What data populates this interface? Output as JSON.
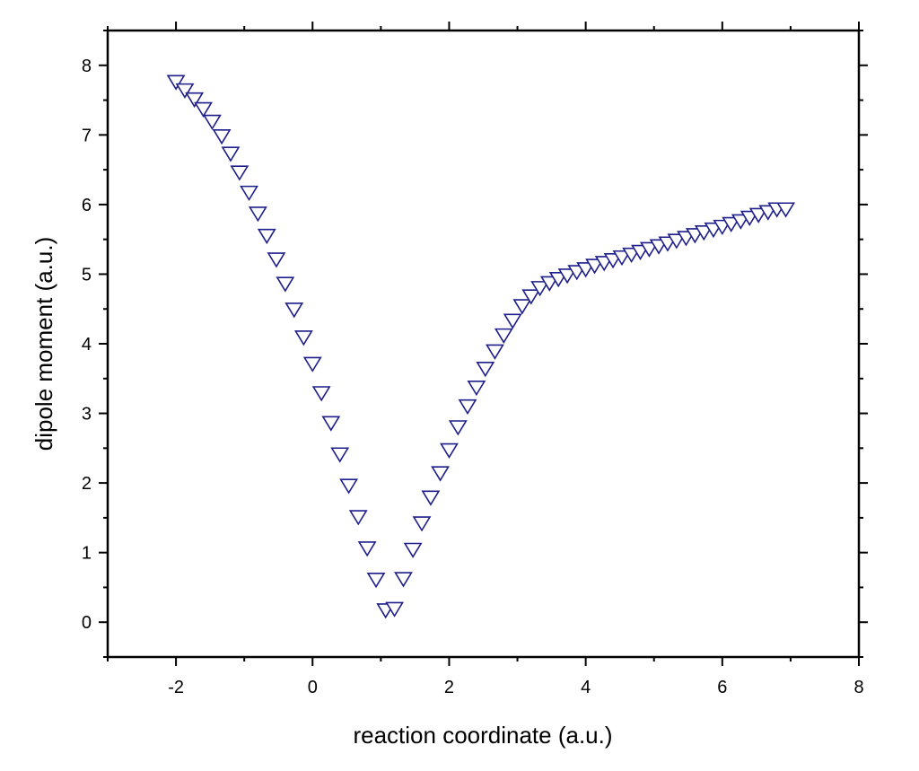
{
  "chart_data": {
    "type": "scatter",
    "title": "",
    "xlabel": "reaction coordinate (a.u.)",
    "ylabel": "dipole moment (a.u.)",
    "xlim": [
      -3,
      8
    ],
    "ylim": [
      -0.5,
      8.5
    ],
    "x_ticks": [
      -2,
      0,
      2,
      4,
      6,
      8
    ],
    "x_tick_labels": [
      "-2",
      "0",
      "2",
      "4",
      "6",
      "8"
    ],
    "y_ticks": [
      0,
      1,
      2,
      3,
      4,
      5,
      6,
      7,
      8
    ],
    "y_tick_labels": [
      "0",
      "1",
      "2",
      "3",
      "4",
      "5",
      "6",
      "7",
      "8"
    ],
    "grid": false,
    "marker": "down-triangle",
    "marker_color": "#1f1f8c",
    "series": [
      {
        "x": [
          -2.0,
          -1.87,
          -1.73,
          -1.6,
          -1.47,
          -1.33,
          -1.2,
          -1.07,
          -0.93,
          -0.8,
          -0.67,
          -0.53,
          -0.4,
          -0.27,
          -0.13,
          0.0,
          0.13,
          0.27,
          0.4,
          0.53,
          0.67,
          0.8,
          0.93,
          1.07,
          1.2,
          1.33,
          1.47,
          1.6,
          1.73,
          1.87,
          2.0,
          2.13,
          2.27,
          2.4,
          2.53,
          2.67,
          2.8,
          2.93,
          3.07,
          3.2,
          3.33,
          3.47,
          3.6,
          3.73,
          3.87,
          4.0,
          4.13,
          4.27,
          4.4,
          4.53,
          4.67,
          4.8,
          4.93,
          5.07,
          5.2,
          5.33,
          5.47,
          5.6,
          5.73,
          5.87,
          6.0,
          6.13,
          6.27,
          6.4,
          6.53,
          6.67,
          6.8,
          6.93
        ],
        "y": [
          7.77,
          7.65,
          7.52,
          7.38,
          7.2,
          6.99,
          6.74,
          6.47,
          6.18,
          5.88,
          5.56,
          5.22,
          4.87,
          4.5,
          4.1,
          3.72,
          3.3,
          2.87,
          2.42,
          1.97,
          1.52,
          1.07,
          0.62,
          0.18,
          0.2,
          0.63,
          1.05,
          1.43,
          1.8,
          2.15,
          2.48,
          2.81,
          3.11,
          3.38,
          3.65,
          3.9,
          4.13,
          4.34,
          4.55,
          4.69,
          4.81,
          4.88,
          4.94,
          4.99,
          5.04,
          5.08,
          5.13,
          5.17,
          5.21,
          5.25,
          5.29,
          5.33,
          5.37,
          5.41,
          5.45,
          5.49,
          5.53,
          5.57,
          5.61,
          5.65,
          5.69,
          5.73,
          5.77,
          5.82,
          5.86,
          5.9,
          5.94,
          5.94
        ]
      }
    ]
  }
}
